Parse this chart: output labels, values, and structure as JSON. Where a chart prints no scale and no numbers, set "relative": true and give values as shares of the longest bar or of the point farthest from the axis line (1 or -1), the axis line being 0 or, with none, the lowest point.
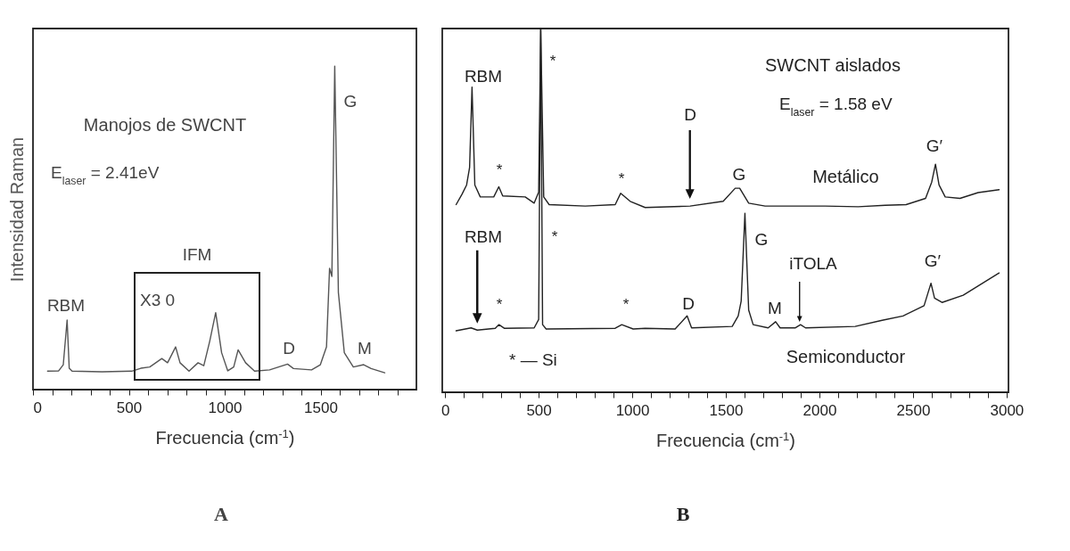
{
  "chart_data": [
    {
      "type": "line",
      "relative": true,
      "ylabel": "Intensidad Raman",
      "xlabel": "Frecuencia (cm$^{-1}$)",
      "xlim": [
        0,
        2000
      ],
      "xticks": [
        0,
        {
          "value": 100,
          "label": null
        },
        {
          "value": 200,
          "label": null
        },
        {
          "value": 300,
          "label": null
        },
        {
          "value": 400,
          "label": null
        },
        500,
        {
          "value": 600,
          "label": null
        },
        {
          "value": 700,
          "label": null
        },
        {
          "value": 800,
          "label": null
        },
        {
          "value": 900,
          "label": null
        },
        1000,
        {
          "value": 1100,
          "label": null
        },
        {
          "value": 1200,
          "label": null
        },
        {
          "value": 1300,
          "label": null
        },
        {
          "value": 1400,
          "label": null
        },
        1500,
        {
          "value": 1600,
          "label": null
        },
        {
          "value": 1700,
          "label": null
        },
        {
          "value": 1800,
          "label": null
        },
        {
          "value": 1900,
          "label": null
        }
      ],
      "x": [
        76,
        134,
        158,
        178,
        189,
        204,
        360,
        515,
        562,
        609,
        672,
        702,
        744,
        767,
        814,
        861,
        891,
        922,
        953,
        984,
        1016,
        1047,
        1070,
        1109,
        1156,
        1234,
        1328,
        1359,
        1453,
        1499,
        1531,
        1547,
        1559,
        1574,
        1593,
        1624,
        1671,
        1725,
        1764,
        1835
      ],
      "series": [
        {
          "color": "#555555",
          "values": [
            0.057,
            0.058,
            0.077,
            0.215,
            0.066,
            0.057,
            0.055,
            0.057,
            0.066,
            0.07,
            0.096,
            0.083,
            0.132,
            0.083,
            0.057,
            0.083,
            0.074,
            0.15,
            0.238,
            0.114,
            0.058,
            0.07,
            0.123,
            0.083,
            0.057,
            0.061,
            0.079,
            0.065,
            0.061,
            0.077,
            0.132,
            0.375,
            0.35,
            1.0,
            0.3,
            0.114,
            0.07,
            0.077,
            0.065,
            0.052
          ]
        }
      ],
      "annotations": [
        "Manojos de SWCNT",
        "E$_{laser}$ = 2.41eV",
        "IFM",
        "X3 0",
        "A",
        "RBM",
        "G",
        "D",
        "M"
      ]
    },
    {
      "type": "line",
      "relative": true,
      "xlabel": "Frecuencia (cm$^{-1}$)",
      "xlim": [
        -15,
        3010
      ],
      "xticks": [
        0,
        {
          "value": 100,
          "label": null
        },
        {
          "value": 200,
          "label": null
        },
        {
          "value": 300,
          "label": null
        },
        {
          "value": 400,
          "label": null
        },
        500,
        {
          "value": 600,
          "label": null
        },
        {
          "value": 700,
          "label": null
        },
        {
          "value": 800,
          "label": null
        },
        {
          "value": 900,
          "label": null
        },
        1000,
        {
          "value": 1100,
          "label": null
        },
        {
          "value": 1200,
          "label": null
        },
        {
          "value": 1300,
          "label": null
        },
        {
          "value": 1400,
          "label": null
        },
        1500,
        {
          "value": 1600,
          "label": null
        },
        {
          "value": 1700,
          "label": null
        },
        {
          "value": 1800,
          "label": null
        },
        {
          "value": 1900,
          "label": null
        },
        2000,
        {
          "value": 2100,
          "label": null
        },
        {
          "value": 2200,
          "label": null
        },
        {
          "value": 2300,
          "label": null
        },
        {
          "value": 2400,
          "label": null
        },
        2500,
        {
          "value": 2600,
          "label": null
        },
        {
          "value": 2700,
          "label": null
        },
        {
          "value": 2800,
          "label": null
        },
        {
          "value": 2900,
          "label": null
        },
        3000
      ],
      "series": [
        {
          "name": "Metálico",
          "color": "#222222",
          "x": [
            59,
            91,
            115,
            131,
            144,
            159,
            188,
            260,
            287,
            308,
            428,
            476,
            500,
            511,
            527,
            556,
            749,
            909,
            938,
            989,
            1069,
            1309,
            1486,
            1550,
            1574,
            1622,
            1710,
            2030,
            2207,
            2351,
            2463,
            2567,
            2600,
            2620,
            2639,
            2672,
            2751,
            2848,
            2960
          ],
          "values": [
            0.516,
            0.545,
            0.57,
            0.618,
            0.839,
            0.57,
            0.537,
            0.537,
            0.565,
            0.54,
            0.537,
            0.52,
            0.55,
            1.0,
            0.537,
            0.516,
            0.512,
            0.516,
            0.547,
            0.525,
            0.508,
            0.512,
            0.525,
            0.561,
            0.561,
            0.52,
            0.512,
            0.512,
            0.51,
            0.514,
            0.516,
            0.533,
            0.578,
            0.627,
            0.57,
            0.537,
            0.533,
            0.549,
            0.557
          ]
        },
        {
          "name": "Semiconductor",
          "color": "#222222",
          "x": [
            59,
            139,
            172,
            268,
            288,
            316,
            476,
            500,
            511,
            521,
            540,
            909,
            944,
            1005,
            1069,
            1229,
            1293,
            1317,
            1534,
            1566,
            1582,
            1602,
            1622,
            1646,
            1726,
            1766,
            1790,
            1870,
            1899,
            1926,
            2191,
            2335,
            2447,
            2559,
            2596,
            2615,
            2655,
            2768,
            2960
          ],
          "values": [
            0.169,
            0.177,
            0.171,
            0.176,
            0.186,
            0.176,
            0.177,
            0.2,
            1.0,
            0.186,
            0.174,
            0.176,
            0.186,
            0.174,
            0.176,
            0.174,
            0.21,
            0.177,
            0.181,
            0.21,
            0.251,
            0.492,
            0.226,
            0.186,
            0.177,
            0.194,
            0.177,
            0.177,
            0.186,
            0.177,
            0.181,
            0.198,
            0.21,
            0.238,
            0.3,
            0.259,
            0.247,
            0.267,
            0.328
          ]
        }
      ],
      "annotations": [
        "SWCNT aislados",
        "E$_{laser}$ = 1.58 eV",
        "* — Si",
        "B",
        "RBM",
        "*",
        "*",
        "*",
        "D",
        "G",
        "G′",
        "RBM",
        "*",
        "*",
        "*",
        "D",
        "G",
        "M",
        "iTOLA",
        "G′"
      ]
    }
  ]
}
